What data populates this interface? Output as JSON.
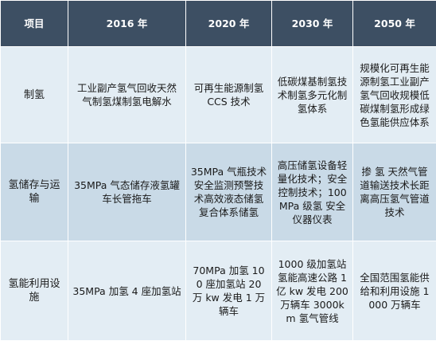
{
  "header": [
    "项目",
    "2016 年",
    "2020 年",
    "2030 年",
    "2050 年"
  ],
  "rows": [
    {
      "item": "制氢",
      "y2016": "工业副产氢气回收天然气制氢煤制氢电解水",
      "y2020": "可再生能源制氢 CCS 技术",
      "y2030": "低碳煤基制氢技术制氢多元化制氢体系",
      "y2050": "规模化可再生能源制氢工业副产氢气回收规模低碳煤制氢形成绿色氢能供应体系"
    },
    {
      "item": "氢储存与运输",
      "y2016": "35MPa 气态储存液氢罐车长管拖车",
      "y2020": "35MPa 气瓶技术安全监测预警技术高效液态储氢复合体系储氢",
      "y2030": "高压储氢设备轻量化技术；安全控制技术；100MPa 级氢 安全 仪器仪表",
      "y2050": "掺 氢 天然气管道输送技术长距离高压氢气管道技术"
    },
    {
      "item": "氢能利用设施",
      "y2016": "35MPa 加氢 4 座加氢站",
      "y2020": "70MPa 加氢 100 座加氢站 20 万 kw 发电 1 万辆车",
      "y2030": "1000 级加氢站氢能高速公路 1 亿 kw 发电 200 万辆车 3000km 氢气管线",
      "y2050": "全国范围氢能供给和利用设施 1000 万辆车"
    }
  ]
}
